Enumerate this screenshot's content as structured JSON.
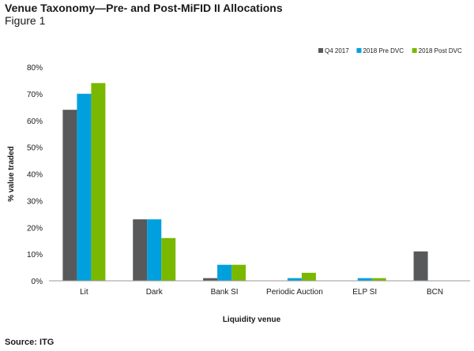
{
  "header": {
    "title": "Venue Taxonomy—Pre- and Post-MiFID II Allocations",
    "subtitle": "Figure 1"
  },
  "footer": {
    "source": "Source: ITG"
  },
  "chart_data": {
    "type": "bar",
    "title": "",
    "xlabel": "Liquidity venue",
    "ylabel": "% value traded",
    "categories": [
      "Lit",
      "Dark",
      "Bank SI",
      "Periodic Auction",
      "ELP SI",
      "BCN"
    ],
    "series": [
      {
        "name": "Q4 2017",
        "color": "#58595b",
        "values": [
          64,
          23,
          1,
          0,
          0,
          11
        ]
      },
      {
        "name": "2018 Pre DVC",
        "color": "#00a0df",
        "values": [
          70,
          23,
          6,
          1,
          1,
          0
        ]
      },
      {
        "name": "2018 Post DVC",
        "color": "#7ab800",
        "values": [
          74,
          16,
          6,
          3,
          1,
          0
        ]
      }
    ],
    "ylim": [
      0,
      80
    ],
    "yticks": [
      0,
      10,
      20,
      30,
      40,
      50,
      60,
      70,
      80
    ],
    "ytick_labels": [
      "0%",
      "10%",
      "20%",
      "30%",
      "40%",
      "50%",
      "60%",
      "70%",
      "80%"
    ],
    "grid": false,
    "legend": "top-right"
  }
}
